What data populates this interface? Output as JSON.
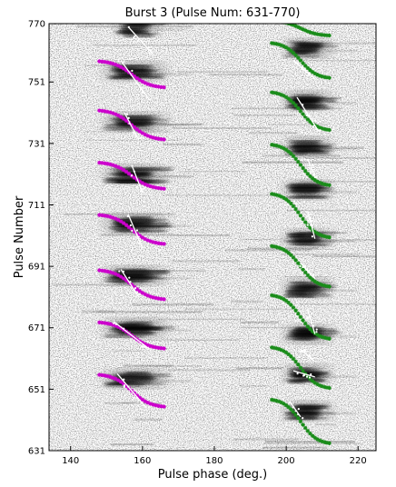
{
  "chart_data": {
    "type": "heatmap",
    "title": "Burst 3 (Pulse Num: 631-770)",
    "xlabel": "Pulse phase (deg.)",
    "ylabel": "Pulse Number",
    "xlim": [
      134,
      225
    ],
    "ylim": [
      631,
      770
    ],
    "xticks": [
      140,
      160,
      180,
      200,
      220
    ],
    "yticks": [
      631,
      651,
      671,
      691,
      711,
      731,
      751,
      770
    ],
    "colormap": "grayscale (white = low, black = high intensity)",
    "grid": false,
    "series_colors": {
      "leading_model": "#cc00cc",
      "trailing_model": "#1a8c1a",
      "fit_lines": "#ffffff"
    },
    "subpulse_bands": [
      {
        "component": "leading",
        "center_y": 654.5,
        "x_start": 150,
        "x_end": 166
      },
      {
        "component": "leading",
        "center_y": 671.0,
        "x_start": 150,
        "x_end": 166
      },
      {
        "component": "leading",
        "center_y": 688.0,
        "x_start": 150,
        "x_end": 166
      },
      {
        "component": "leading",
        "center_y": 705.0,
        "x_start": 150,
        "x_end": 166
      },
      {
        "component": "leading",
        "center_y": 721.0,
        "x_start": 150,
        "x_end": 166
      },
      {
        "component": "leading",
        "center_y": 738.0,
        "x_start": 150,
        "x_end": 166
      },
      {
        "component": "leading",
        "center_y": 754.5,
        "x_start": 150,
        "x_end": 166
      },
      {
        "component": "leading",
        "center_y": 769.0,
        "x_start": 153,
        "x_end": 164
      },
      {
        "component": "trailing",
        "center_y": 644.0,
        "x_start": 200,
        "x_end": 212
      },
      {
        "component": "trailing",
        "center_y": 656.0,
        "x_start": 200,
        "x_end": 212
      },
      {
        "component": "trailing",
        "center_y": 669.0,
        "x_start": 200,
        "x_end": 212
      },
      {
        "component": "trailing",
        "center_y": 684.0,
        "x_start": 200,
        "x_end": 212
      },
      {
        "component": "trailing",
        "center_y": 700.0,
        "x_start": 200,
        "x_end": 212
      },
      {
        "component": "trailing",
        "center_y": 716.0,
        "x_start": 200,
        "x_end": 212
      },
      {
        "component": "trailing",
        "center_y": 730.0,
        "x_start": 200,
        "x_end": 212
      },
      {
        "component": "trailing",
        "center_y": 745.0,
        "x_start": 200,
        "x_end": 212
      },
      {
        "component": "trailing",
        "center_y": 762.0,
        "x_start": 200,
        "x_end": 212
      }
    ],
    "leading_model_tracks": [
      {
        "y_start": 656,
        "y_end": 645
      },
      {
        "y_start": 673,
        "y_end": 664
      },
      {
        "y_start": 690,
        "y_end": 680
      },
      {
        "y_start": 708,
        "y_end": 698
      },
      {
        "y_start": 725,
        "y_end": 716
      },
      {
        "y_start": 742,
        "y_end": 732
      },
      {
        "y_start": 758,
        "y_end": 749
      }
    ],
    "leading_model_x": [
      148,
      166
    ],
    "trailing_model_tracks": [
      {
        "y_start": 648,
        "y_end": 633
      },
      {
        "y_start": 665,
        "y_end": 651
      },
      {
        "y_start": 682,
        "y_end": 667
      },
      {
        "y_start": 698,
        "y_end": 684
      },
      {
        "y_start": 715,
        "y_end": 700
      },
      {
        "y_start": 731,
        "y_end": 717
      },
      {
        "y_start": 748,
        "y_end": 735
      },
      {
        "y_start": 764,
        "y_end": 752
      },
      {
        "y_start": 771,
        "y_end": 766
      }
    ],
    "trailing_model_x": [
      196,
      212
    ],
    "fit_lines": [
      {
        "x": [
          153,
          161
        ],
        "y": [
          656,
          645
        ]
      },
      {
        "x": [
          152,
          162
        ],
        "y": [
          673,
          664
        ]
      },
      {
        "x": [
          154,
          159
        ],
        "y": [
          690,
          681
        ]
      },
      {
        "x": [
          156,
          160
        ],
        "y": [
          708,
          697
        ]
      },
      {
        "x": [
          157,
          160
        ],
        "y": [
          724,
          715
        ]
      },
      {
        "x": [
          155,
          159
        ],
        "y": [
          741,
          732
        ]
      },
      {
        "x": [
          154,
          162
        ],
        "y": [
          758,
          745
        ]
      },
      {
        "x": [
          156,
          163
        ],
        "y": [
          769,
          760
        ]
      },
      {
        "x": [
          201,
          204
        ],
        "y": [
          647,
          642
        ]
      },
      {
        "x": [
          202,
          208
        ],
        "y": [
          657,
          655
        ]
      },
      {
        "x": [
          204,
          208
        ],
        "y": [
          664,
          660
        ]
      },
      {
        "x": [
          206,
          208
        ],
        "y": [
          677,
          669
        ]
      },
      {
        "x": [
          204,
          208
        ],
        "y": [
          692,
          687
        ]
      },
      {
        "x": [
          206,
          208
        ],
        "y": [
          709,
          700
        ]
      },
      {
        "x": [
          206,
          208
        ],
        "y": [
          726,
          720
        ]
      },
      {
        "x": [
          203,
          209
        ],
        "y": [
          746,
          735
        ]
      },
      {
        "x": [
          202,
          208
        ],
        "y": [
          758,
          752
        ]
      }
    ]
  }
}
